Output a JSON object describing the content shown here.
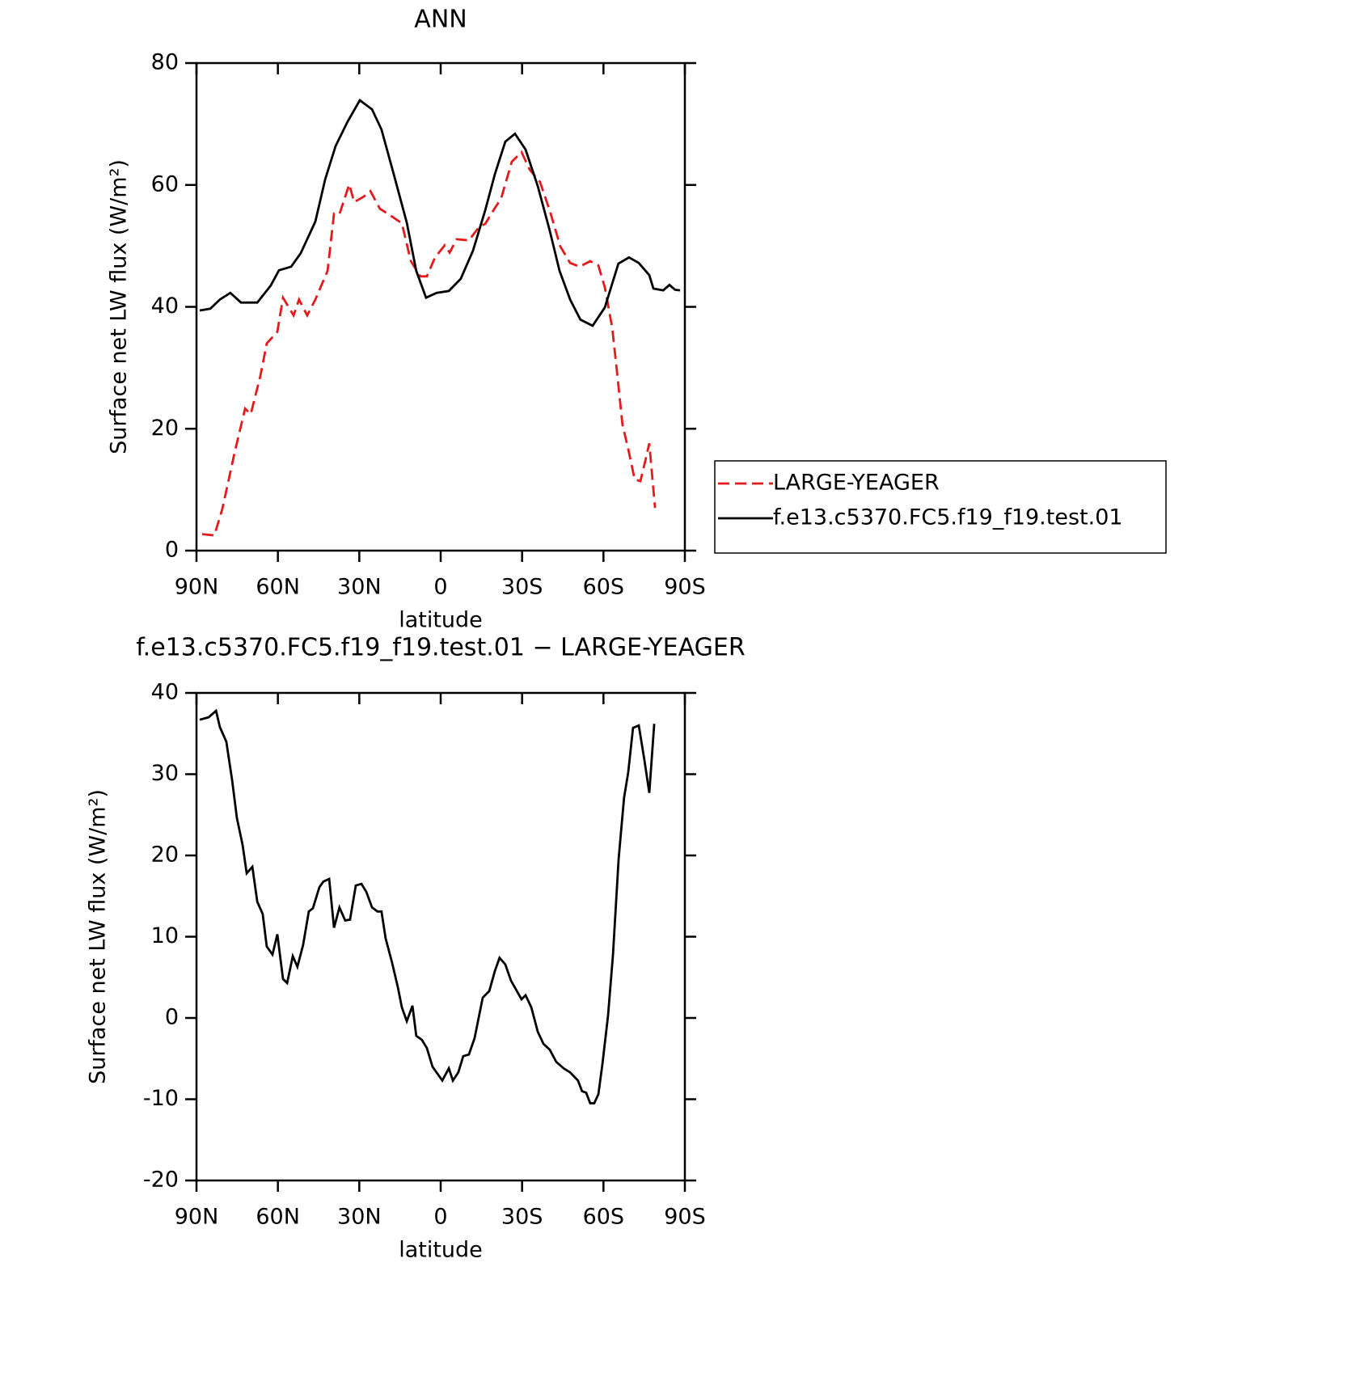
{
  "chart_data": [
    {
      "type": "line",
      "title": "ANN",
      "xlabel": "latitude",
      "ylabel": "Surface net LW flux (W/m²)",
      "xlim": [
        90,
        -90
      ],
      "xticks": [
        {
          "value": 90,
          "label": "90N"
        },
        {
          "value": 60,
          "label": "60N"
        },
        {
          "value": 30,
          "label": "30N"
        },
        0,
        {
          "value": -30,
          "label": "30S"
        },
        {
          "value": -60,
          "label": "60S"
        },
        {
          "value": -90,
          "label": "90S"
        }
      ],
      "ylim": [
        0,
        80
      ],
      "yticks": [
        0,
        20,
        40,
        60,
        80
      ],
      "legend": "right",
      "series": [
        {
          "name": "LARGE-YEAGER",
          "color": "#e41a1c",
          "style": "dashed",
          "x": [
            87.9,
            83.4,
            80.5,
            76.0,
            72.1,
            70.0,
            66.5,
            64.1,
            60.2,
            58.1,
            54.2,
            52.2,
            49.2,
            46.2,
            41.7,
            39.3,
            37.3,
            33.7,
            31.9,
            28.3,
            25.9,
            22.4,
            17.9,
            14.3,
            11.0,
            7.5,
            5.1,
            2.1,
            -1.5,
            -3.3,
            -5.9,
            -10.4,
            -14.3,
            -16.4,
            -19.4,
            -22.3,
            -26.2,
            -29.8,
            -32.8,
            -36.6,
            -40.2,
            -44.1,
            -47.7,
            -51.2,
            -55.1,
            -58.1,
            -60.5,
            -63.2,
            -65.0,
            -67.0,
            -69.1,
            -71.5,
            -73.6,
            -75.4,
            -76.9,
            -79.0
          ],
          "values": [
            2.7,
            2.5,
            6.8,
            16.0,
            23.3,
            22.4,
            28.6,
            34.0,
            35.9,
            41.5,
            38.6,
            41.2,
            38.6,
            41.2,
            45.9,
            55.3,
            55.2,
            60.1,
            57.2,
            58.1,
            59.0,
            56.1,
            54.8,
            53.7,
            47.5,
            45.0,
            45.0,
            48.1,
            50.1,
            48.9,
            51.1,
            50.9,
            53.2,
            53.6,
            55.8,
            57.8,
            63.8,
            65.4,
            62.5,
            60.5,
            55.8,
            49.9,
            47.2,
            46.6,
            47.5,
            46.8,
            43.2,
            36.6,
            29.3,
            20.7,
            16.7,
            11.7,
            11.4,
            14.7,
            17.6,
            7.0
          ]
        },
        {
          "name": "f.e13.c5370.FC5.f19_f19.test.01",
          "color": "#000000",
          "style": "solid",
          "x": [
            88.8,
            84.9,
            81.4,
            77.5,
            73.6,
            67.6,
            62.6,
            59.6,
            55.1,
            51.6,
            46.2,
            42.6,
            38.7,
            34.3,
            29.8,
            25.3,
            21.8,
            17.3,
            12.5,
            9.0,
            5.4,
            1.5,
            -3.0,
            -7.4,
            -11.9,
            -16.4,
            -20.0,
            -23.8,
            -27.4,
            -31.3,
            -35.8,
            -40.2,
            -43.8,
            -47.7,
            -51.5,
            -56.0,
            -60.5,
            -65.5,
            -69.4,
            -73.0,
            -76.9,
            -78.4,
            -82.0,
            -84.3,
            -86.4,
            -88.2
          ],
          "values": [
            39.4,
            39.7,
            41.2,
            42.3,
            40.7,
            40.7,
            43.5,
            46.0,
            46.6,
            48.8,
            54.0,
            60.9,
            66.4,
            70.4,
            73.9,
            72.4,
            69.1,
            61.8,
            53.8,
            45.9,
            41.5,
            42.3,
            42.6,
            44.6,
            49.2,
            55.8,
            61.8,
            67.1,
            68.4,
            65.8,
            59.8,
            52.5,
            45.9,
            41.2,
            37.9,
            36.9,
            39.9,
            47.1,
            48.1,
            47.2,
            45.2,
            43.0,
            42.7,
            43.6,
            42.8,
            42.7
          ]
        }
      ]
    },
    {
      "type": "line",
      "title": "f.e13.c5370.FC5.f19_f19.test.01 − LARGE-YEAGER",
      "xlabel": "latitude",
      "ylabel": "Surface net LW flux (W/m²)",
      "xlim": [
        90,
        -90
      ],
      "xticks": [
        {
          "value": 90,
          "label": "90N"
        },
        {
          "value": 60,
          "label": "60N"
        },
        {
          "value": 30,
          "label": "30N"
        },
        0,
        {
          "value": -30,
          "label": "30S"
        },
        {
          "value": -60,
          "label": "60S"
        },
        {
          "value": -90,
          "label": "90S"
        }
      ],
      "ylim": [
        -20,
        40
      ],
      "yticks": [
        -20,
        -10,
        0,
        10,
        20,
        30,
        40
      ],
      "color": "#000000",
      "x": [
        88.8,
        85.5,
        82.8,
        81.4,
        79.0,
        76.9,
        75.1,
        73.0,
        71.5,
        69.4,
        67.6,
        65.6,
        64.1,
        62.0,
        60.2,
        58.1,
        56.6,
        54.5,
        52.8,
        50.7,
        48.6,
        47.1,
        44.7,
        43.2,
        41.1,
        39.3,
        37.3,
        35.2,
        33.4,
        31.3,
        29.2,
        27.4,
        25.3,
        23.3,
        21.8,
        20.3,
        17.9,
        15.8,
        14.3,
        12.5,
        10.4,
        9.0,
        6.9,
        5.1,
        3.0,
        -0.6,
        -3.0,
        -4.5,
        -6.5,
        -8.3,
        -10.4,
        -12.5,
        -15.5,
        -17.9,
        -20.0,
        -21.7,
        -23.8,
        -25.9,
        -29.8,
        -31.3,
        -33.4,
        -35.8,
        -37.9,
        -40.2,
        -42.6,
        -45.3,
        -47.7,
        -50.6,
        -52.1,
        -53.6,
        -55.1,
        -56.6,
        -58.1,
        -59.6,
        -61.7,
        -63.5,
        -65.6,
        -67.6,
        -69.1,
        -70.9,
        -73.0,
        -75.1,
        -76.9,
        -78.7
      ],
      "values": [
        36.7,
        37.0,
        37.8,
        35.8,
        34.0,
        29.3,
        24.6,
        21.3,
        17.8,
        18.6,
        14.3,
        12.8,
        8.8,
        7.8,
        10.3,
        4.8,
        4.3,
        7.6,
        6.3,
        9.0,
        13.1,
        13.5,
        16.1,
        16.8,
        17.1,
        11.1,
        13.6,
        12.0,
        12.1,
        16.3,
        16.5,
        15.5,
        13.6,
        13.1,
        13.1,
        9.8,
        6.8,
        3.8,
        1.3,
        -0.4,
        1.5,
        -2.2,
        -2.7,
        -3.7,
        -6.0,
        -7.7,
        -6.2,
        -7.7,
        -6.7,
        -4.7,
        -4.5,
        -2.5,
        2.5,
        3.3,
        5.8,
        7.4,
        6.6,
        4.6,
        2.3,
        2.8,
        1.3,
        -1.7,
        -3.2,
        -3.9,
        -5.4,
        -6.2,
        -6.7,
        -7.7,
        -9.0,
        -9.2,
        -10.5,
        -10.5,
        -9.4,
        -5.7,
        0.3,
        7.8,
        19.6,
        27.1,
        30.2,
        35.7,
        36.0,
        31.7,
        27.7,
        36.2
      ]
    }
  ]
}
